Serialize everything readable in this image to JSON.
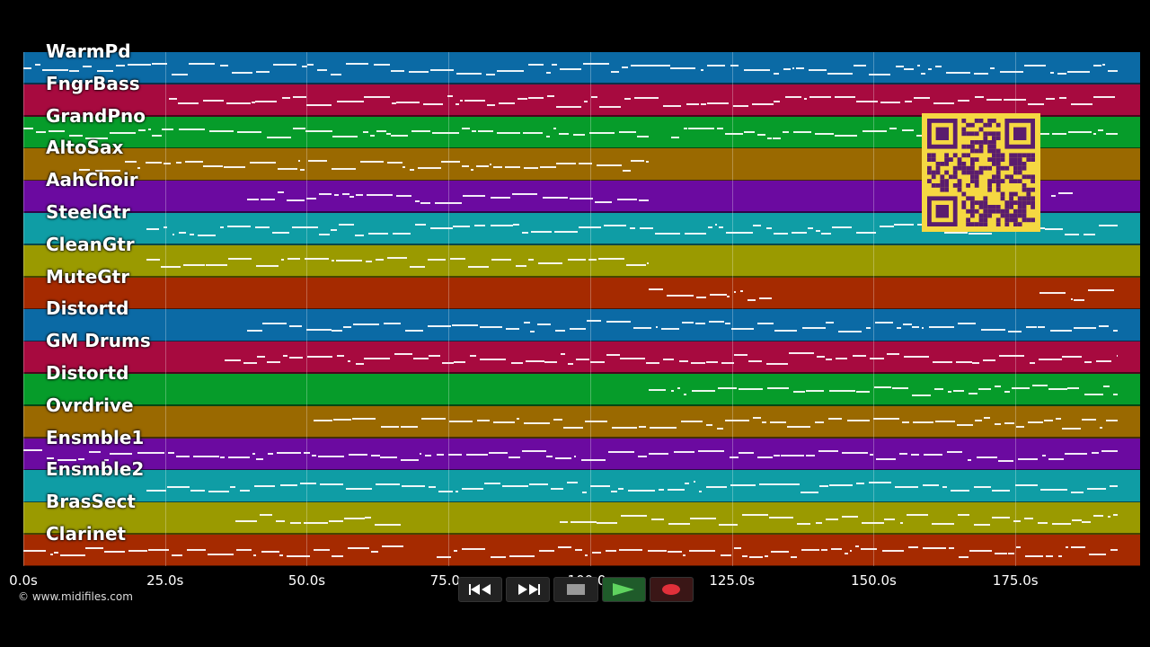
{
  "tracks": [
    {
      "name": "WarmPd",
      "color": "#0b6aa5"
    },
    {
      "name": "FngrBass",
      "color": "#a70a3f"
    },
    {
      "name": "GrandPno",
      "color": "#069c2a"
    },
    {
      "name": "AltoSax",
      "color": "#9a6900"
    },
    {
      "name": "AahChoir",
      "color": "#6b0aa0"
    },
    {
      "name": "SteelGtr",
      "color": "#0f9da5"
    },
    {
      "name": "CleanGtr",
      "color": "#9a9a00"
    },
    {
      "name": "MuteGtr",
      "color": "#a52a00"
    },
    {
      "name": "Distortd",
      "color": "#0b6aa5"
    },
    {
      "name": "GM Drums",
      "color": "#a70a3f"
    },
    {
      "name": "Distortd",
      "color": "#069c2a"
    },
    {
      "name": "Ovrdrive",
      "color": "#9a6900"
    },
    {
      "name": "Ensmble1",
      "color": "#6b0aa0"
    },
    {
      "name": "Ensmble2",
      "color": "#0f9da5"
    },
    {
      "name": "BrasSect",
      "color": "#9a9a00"
    },
    {
      "name": "Clarinet",
      "color": "#a52a00"
    }
  ],
  "timeline": {
    "start_s": 0,
    "end_s": 197,
    "ticks": [
      "0.0s",
      "25.0s",
      "50.0s",
      "75.0s",
      "100.0s",
      "125.0s",
      "150.0s",
      "175.0s"
    ]
  },
  "copyright": "© www.midifiles.com",
  "transport": {
    "rewind": "rewind-icon",
    "fast_forward": "fast-forward-icon",
    "stop": "stop-icon",
    "play": "play-icon",
    "record": "record-icon",
    "play_color": "#5fd35f",
    "record_color": "#e0303a"
  }
}
